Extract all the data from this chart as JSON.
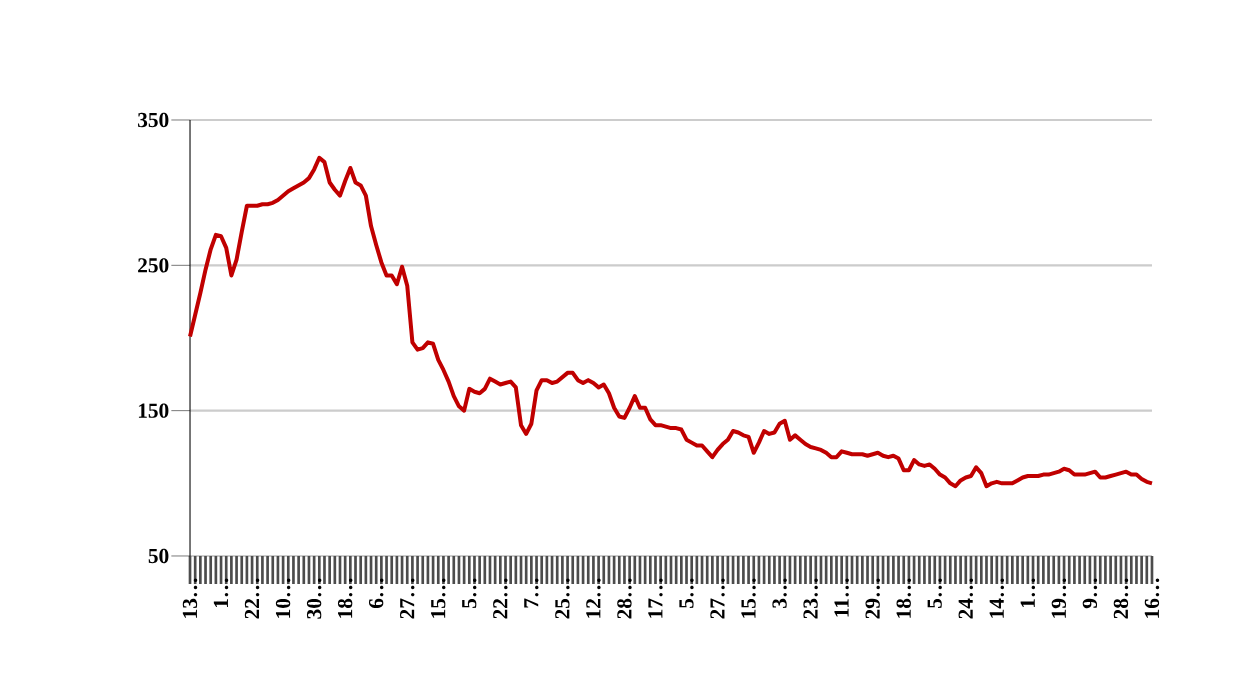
{
  "chart_data": {
    "type": "line",
    "color": "#c00000",
    "grid": "y",
    "ylim": [
      50,
      350
    ],
    "yticks": [
      50,
      150,
      250,
      350
    ],
    "categories": [
      "13…",
      null,
      null,
      null,
      null,
      null,
      "1…",
      null,
      null,
      null,
      null,
      null,
      "22…",
      null,
      null,
      null,
      null,
      null,
      "10…",
      null,
      null,
      null,
      null,
      null,
      "30…",
      null,
      null,
      null,
      null,
      null,
      "18…",
      null,
      null,
      null,
      null,
      null,
      "6…",
      null,
      null,
      null,
      null,
      null,
      "27…",
      null,
      null,
      null,
      null,
      null,
      "15…",
      null,
      null,
      null,
      null,
      null,
      "5…",
      null,
      null,
      null,
      null,
      null,
      "22…",
      null,
      null,
      null,
      null,
      null,
      "7…",
      null,
      null,
      null,
      null,
      null,
      "25…",
      null,
      null,
      null,
      null,
      null,
      "12…",
      null,
      null,
      null,
      null,
      null,
      "28…",
      null,
      null,
      null,
      null,
      null,
      "17…",
      null,
      null,
      null,
      null,
      null,
      "5…",
      null,
      null,
      null,
      null,
      null,
      "27…",
      null,
      null,
      null,
      null,
      null,
      "15…",
      null,
      null,
      null,
      null,
      null,
      "3…",
      null,
      null,
      null,
      null,
      null,
      "23…",
      null,
      null,
      null,
      null,
      null,
      "11…",
      null,
      null,
      null,
      null,
      null,
      "29…",
      null,
      null,
      null,
      null,
      null,
      "18…",
      null,
      null,
      null,
      null,
      null,
      "5…",
      null,
      null,
      null,
      null,
      null,
      "24…",
      null,
      null,
      null,
      null,
      null,
      "14…",
      null,
      null,
      null,
      null,
      null,
      "1…",
      null,
      null,
      null,
      null,
      null,
      "19…",
      null,
      null,
      null,
      null,
      null,
      "9…",
      null,
      null,
      null,
      null,
      null,
      "28…",
      null,
      null,
      null,
      null,
      null,
      "16…"
    ],
    "values": [
      201,
      216,
      231,
      247,
      261,
      271,
      270,
      262,
      243,
      254,
      273,
      291,
      291,
      291,
      292,
      292,
      293,
      295,
      298,
      301,
      303,
      305,
      307,
      310,
      316,
      324,
      321,
      307,
      302,
      298,
      308,
      317,
      307,
      305,
      298,
      277,
      264,
      252,
      243,
      243,
      237,
      249,
      236,
      197,
      192,
      193,
      197,
      196,
      185,
      178,
      170,
      160,
      153,
      150,
      165,
      163,
      162,
      165,
      172,
      170,
      168,
      169,
      170,
      166,
      140,
      134,
      141,
      164,
      171,
      171,
      169,
      170,
      173,
      176,
      176,
      171,
      169,
      171,
      169,
      166,
      168,
      162,
      152,
      146,
      145,
      152,
      160,
      152,
      152,
      144,
      140,
      140,
      139,
      138,
      138,
      137,
      130,
      128,
      126,
      126,
      122,
      118,
      123,
      127,
      130,
      136,
      135,
      133,
      132,
      121,
      128,
      136,
      134,
      135,
      141,
      143,
      130,
      133,
      130,
      127,
      125,
      124,
      123,
      121,
      118,
      118,
      122,
      121,
      120,
      120,
      120,
      119,
      120,
      121,
      119,
      118,
      119,
      117,
      109,
      109,
      116,
      113,
      112,
      113,
      110,
      106,
      104,
      100,
      98,
      102,
      104,
      105,
      111,
      107,
      98,
      100,
      101,
      100,
      100,
      100,
      102,
      104,
      105,
      105,
      105,
      106,
      106,
      107,
      108,
      110,
      109,
      106,
      106,
      106,
      107,
      108,
      104,
      104,
      105,
      106,
      107,
      108,
      106,
      106,
      103,
      101,
      100
    ]
  }
}
